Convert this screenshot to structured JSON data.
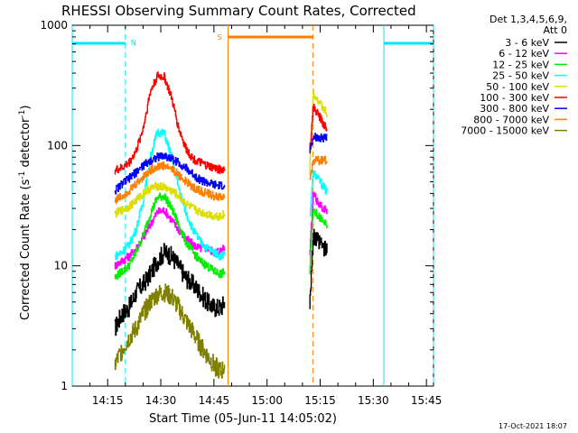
{
  "chart_data": {
    "type": "line",
    "title": "RHESSI Observing Summary Count Rates, Corrected",
    "xlabel": "Start Time (05-Jun-11 14:05:02)",
    "ylabel_main": "Corrected Count Rate (s",
    "ylabel_sup1": "-1",
    "ylabel_mid": " detector",
    "ylabel_sup2": "-1",
    "ylabel_end": ")",
    "yscale": "log",
    "ylim": [
      1,
      1000
    ],
    "xlim_minutes": [
      0,
      102
    ],
    "x_ticks": [
      {
        "m": 10,
        "label": "14:15"
      },
      {
        "m": 25,
        "label": "14:30"
      },
      {
        "m": 40,
        "label": "14:45"
      },
      {
        "m": 55,
        "label": "15:00"
      },
      {
        "m": 70,
        "label": "15:15"
      },
      {
        "m": 85,
        "label": "15:30"
      },
      {
        "m": 100,
        "label": "15:45"
      }
    ],
    "y_ticks": [
      {
        "v": 1,
        "label": "1"
      },
      {
        "v": 10,
        "label": "10"
      },
      {
        "v": 100,
        "label": "100"
      },
      {
        "v": 1000,
        "label": "1000"
      }
    ],
    "legend_header": [
      "Det 1,3,4,5,6,9,",
      "Att 0"
    ],
    "legend_position": "top-right, outside plot",
    "timestamp": "17-Oct-2021 18:07",
    "night_marker": "N",
    "saa_marker": "S",
    "night_intervals_min": [
      [
        0,
        15
      ],
      [
        88,
        102
      ]
    ],
    "saa_intervals_min": [
      [
        44,
        68
      ]
    ],
    "series": [
      {
        "name": "3 - 6 keV",
        "color": "#000000",
        "data": [
          [
            12,
            3
          ],
          [
            14,
            4
          ],
          [
            16,
            4.5
          ],
          [
            18,
            6
          ],
          [
            20,
            7
          ],
          [
            22,
            8.5
          ],
          [
            24,
            11
          ],
          [
            26,
            13
          ],
          [
            28,
            12
          ],
          [
            30,
            10
          ],
          [
            32,
            8
          ],
          [
            34,
            7
          ],
          [
            36,
            6
          ],
          [
            38,
            5
          ],
          [
            40,
            4.5
          ],
          [
            42,
            4.5
          ],
          [
            43,
            5
          ]
        ],
        "data_late": [
          [
            67,
            5
          ],
          [
            68,
            17
          ],
          [
            69,
            16
          ],
          [
            70,
            15
          ],
          [
            71,
            14
          ],
          [
            72,
            13
          ]
        ]
      },
      {
        "name": "6 - 12 keV",
        "color": "#ff00ff",
        "data": [
          [
            12,
            10
          ],
          [
            14,
            11
          ],
          [
            16,
            12
          ],
          [
            18,
            14
          ],
          [
            20,
            17
          ],
          [
            22,
            22
          ],
          [
            24,
            28
          ],
          [
            26,
            29
          ],
          [
            28,
            24
          ],
          [
            30,
            20
          ],
          [
            32,
            17
          ],
          [
            34,
            15
          ],
          [
            36,
            14
          ],
          [
            38,
            14
          ],
          [
            40,
            13
          ],
          [
            42,
            13.5
          ],
          [
            43,
            14
          ]
        ],
        "data_late": [
          [
            67,
            12
          ],
          [
            68,
            40
          ],
          [
            69,
            35
          ],
          [
            70,
            32
          ],
          [
            71,
            30
          ],
          [
            72,
            28
          ]
        ]
      },
      {
        "name": "12 - 25 keV",
        "color": "#00ee00",
        "data": [
          [
            12,
            8
          ],
          [
            14,
            9
          ],
          [
            16,
            10
          ],
          [
            18,
            13
          ],
          [
            20,
            18
          ],
          [
            22,
            27
          ],
          [
            24,
            37
          ],
          [
            26,
            38
          ],
          [
            28,
            30
          ],
          [
            30,
            22
          ],
          [
            32,
            16
          ],
          [
            34,
            13
          ],
          [
            36,
            11
          ],
          [
            38,
            10
          ],
          [
            40,
            9
          ],
          [
            42,
            8.5
          ],
          [
            43,
            9
          ]
        ],
        "data_late": [
          [
            67,
            9
          ],
          [
            68,
            30
          ],
          [
            69,
            27
          ],
          [
            70,
            25
          ],
          [
            71,
            23
          ],
          [
            72,
            21
          ]
        ]
      },
      {
        "name": "25 - 50 keV",
        "color": "#00ffff",
        "data": [
          [
            12,
            12
          ],
          [
            14,
            13
          ],
          [
            16,
            15
          ],
          [
            18,
            20
          ],
          [
            20,
            35
          ],
          [
            22,
            80
          ],
          [
            24,
            130
          ],
          [
            26,
            125
          ],
          [
            28,
            80
          ],
          [
            30,
            45
          ],
          [
            32,
            28
          ],
          [
            34,
            20
          ],
          [
            36,
            16
          ],
          [
            38,
            14
          ],
          [
            40,
            13
          ],
          [
            42,
            12
          ],
          [
            43,
            13
          ]
        ],
        "data_late": [
          [
            67,
            25
          ],
          [
            68,
            60
          ],
          [
            69,
            55
          ],
          [
            70,
            50
          ],
          [
            71,
            45
          ],
          [
            72,
            40
          ]
        ]
      },
      {
        "name": "50 - 100 keV",
        "color": "#dddd00",
        "data": [
          [
            12,
            27
          ],
          [
            14,
            29
          ],
          [
            16,
            31
          ],
          [
            18,
            35
          ],
          [
            20,
            40
          ],
          [
            22,
            44
          ],
          [
            24,
            46
          ],
          [
            26,
            45
          ],
          [
            28,
            42
          ],
          [
            30,
            38
          ],
          [
            32,
            33
          ],
          [
            34,
            30
          ],
          [
            36,
            28
          ],
          [
            38,
            27
          ],
          [
            40,
            26
          ],
          [
            42,
            26
          ],
          [
            43,
            27
          ]
        ],
        "data_late": [
          [
            67,
            60
          ],
          [
            68,
            280
          ],
          [
            69,
            250
          ],
          [
            70,
            220
          ],
          [
            71,
            200
          ],
          [
            72,
            180
          ]
        ]
      },
      {
        "name": "100 - 300 keV",
        "color": "#ff0000",
        "data": [
          [
            12,
            62
          ],
          [
            14,
            65
          ],
          [
            16,
            72
          ],
          [
            18,
            90
          ],
          [
            20,
            140
          ],
          [
            22,
            280
          ],
          [
            24,
            380
          ],
          [
            26,
            370
          ],
          [
            28,
            250
          ],
          [
            30,
            140
          ],
          [
            32,
            95
          ],
          [
            34,
            78
          ],
          [
            36,
            72
          ],
          [
            38,
            68
          ],
          [
            40,
            65
          ],
          [
            42,
            63
          ],
          [
            43,
            64
          ]
        ],
        "data_late": [
          [
            67,
            90
          ],
          [
            68,
            210
          ],
          [
            69,
            190
          ],
          [
            70,
            170
          ],
          [
            71,
            150
          ],
          [
            72,
            130
          ]
        ]
      },
      {
        "name": "300 - 800 keV",
        "color": "#0000ff",
        "data": [
          [
            12,
            42
          ],
          [
            14,
            48
          ],
          [
            16,
            53
          ],
          [
            18,
            60
          ],
          [
            20,
            68
          ],
          [
            22,
            75
          ],
          [
            24,
            80
          ],
          [
            26,
            82
          ],
          [
            28,
            78
          ],
          [
            30,
            72
          ],
          [
            32,
            65
          ],
          [
            34,
            58
          ],
          [
            36,
            52
          ],
          [
            38,
            49
          ],
          [
            40,
            47
          ],
          [
            42,
            46
          ],
          [
            43,
            47
          ]
        ],
        "data_late": [
          [
            67,
            90
          ],
          [
            68,
            120
          ],
          [
            69,
            118
          ],
          [
            70,
            116
          ],
          [
            71,
            115
          ],
          [
            72,
            114
          ]
        ]
      },
      {
        "name": "800 - 7000 keV",
        "color": "#ff8000",
        "data": [
          [
            12,
            35
          ],
          [
            14,
            38
          ],
          [
            16,
            42
          ],
          [
            18,
            48
          ],
          [
            20,
            55
          ],
          [
            22,
            62
          ],
          [
            24,
            67
          ],
          [
            26,
            68
          ],
          [
            28,
            64
          ],
          [
            30,
            57
          ],
          [
            32,
            50
          ],
          [
            34,
            45
          ],
          [
            36,
            42
          ],
          [
            38,
            40
          ],
          [
            40,
            38
          ],
          [
            42,
            37
          ],
          [
            43,
            38
          ]
        ],
        "data_late": [
          [
            67,
            50
          ],
          [
            68,
            75
          ],
          [
            69,
            75
          ],
          [
            70,
            75
          ],
          [
            71,
            75
          ],
          [
            72,
            75
          ]
        ]
      },
      {
        "name": "7000 - 15000 keV",
        "color": "#808000",
        "data": [
          [
            12,
            1.5
          ],
          [
            14,
            2
          ],
          [
            16,
            2.5
          ],
          [
            18,
            3
          ],
          [
            20,
            4
          ],
          [
            22,
            5
          ],
          [
            24,
            5.8
          ],
          [
            26,
            6
          ],
          [
            28,
            5.5
          ],
          [
            30,
            4.5
          ],
          [
            32,
            3.5
          ],
          [
            34,
            2.8
          ],
          [
            36,
            2.2
          ],
          [
            38,
            1.8
          ],
          [
            40,
            1.5
          ],
          [
            42,
            1.3
          ],
          [
            43,
            1.5
          ]
        ],
        "data_late": []
      }
    ]
  }
}
